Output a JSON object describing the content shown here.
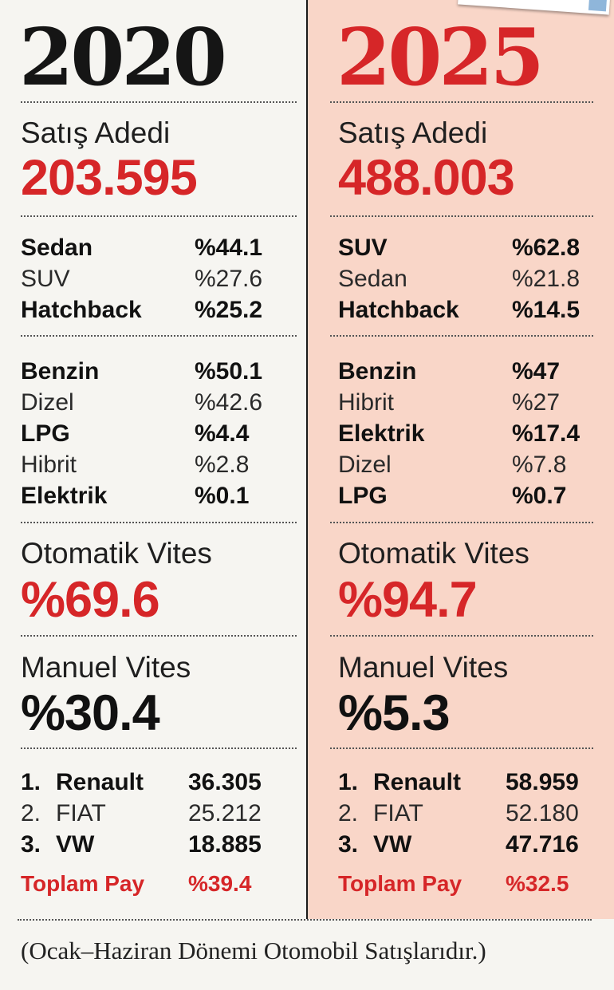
{
  "left": {
    "year": "2020",
    "sales_label": "Satış Adedi",
    "sales_value": "203.595",
    "body_types": [
      {
        "name": "Sedan",
        "value": "%44.1"
      },
      {
        "name": "SUV",
        "value": "%27.6"
      },
      {
        "name": "Hatchback",
        "value": "%25.2"
      }
    ],
    "fuel_types": [
      {
        "name": "Benzin",
        "value": "%50.1"
      },
      {
        "name": "Dizel",
        "value": "%42.6"
      },
      {
        "name": "LPG",
        "value": "%4.4"
      },
      {
        "name": "Hibrit",
        "value": "%2.8"
      },
      {
        "name": "Elektrik",
        "value": "%0.1"
      }
    ],
    "automatic_label": "Otomatik Vites",
    "automatic_value": "%69.6",
    "manual_label": "Manuel Vites",
    "manual_value": "%30.4",
    "brands": [
      {
        "rank": "1.",
        "name": "Renault",
        "value": "36.305"
      },
      {
        "rank": "2.",
        "name": "FIAT",
        "value": "25.212"
      },
      {
        "rank": "3.",
        "name": "VW",
        "value": "18.885"
      }
    ],
    "total_label": "Toplam Pay",
    "total_value": "%39.4"
  },
  "right": {
    "year": "2025",
    "sales_label": "Satış Adedi",
    "sales_value": "488.003",
    "body_types": [
      {
        "name": "SUV",
        "value": "%62.8"
      },
      {
        "name": "Sedan",
        "value": "%21.8"
      },
      {
        "name": "Hatchback",
        "value": "%14.5"
      }
    ],
    "fuel_types": [
      {
        "name": "Benzin",
        "value": "%47"
      },
      {
        "name": "Hibrit",
        "value": "%27"
      },
      {
        "name": "Elektrik",
        "value": "%17.4"
      },
      {
        "name": "Dizel",
        "value": "%7.8"
      },
      {
        "name": "LPG",
        "value": "%0.7"
      }
    ],
    "automatic_label": "Otomatik Vites",
    "automatic_value": "%94.7",
    "manual_label": "Manuel Vites",
    "manual_value": "%5.3",
    "brands": [
      {
        "rank": "1.",
        "name": "Renault",
        "value": "58.959"
      },
      {
        "rank": "2.",
        "name": "FIAT",
        "value": "52.180"
      },
      {
        "rank": "3.",
        "name": "VW",
        "value": "47.716"
      }
    ],
    "total_label": "Toplam Pay",
    "total_value": "%32.5"
  },
  "footnote": "(Ocak–Haziran Dönemi Otomobil Satışlarıdır.)",
  "colors": {
    "accent_red": "#d62628",
    "right_bg": "#f9d6c8",
    "left_bg": "#f6f5f1"
  }
}
